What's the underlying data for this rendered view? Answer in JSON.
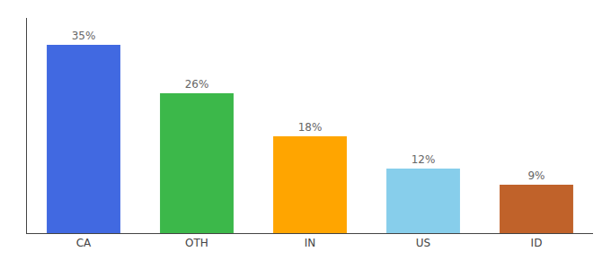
{
  "chart_data": {
    "type": "bar",
    "categories": [
      "CA",
      "OTH",
      "IN",
      "US",
      "ID"
    ],
    "values": [
      35,
      26,
      18,
      12,
      9
    ],
    "value_labels": [
      "35%",
      "26%",
      "18%",
      "12%",
      "9%"
    ],
    "colors": [
      "#4169E1",
      "#3CB84A",
      "#FFA500",
      "#87CEEB",
      "#C0622A"
    ],
    "ylim": [
      0,
      40
    ],
    "data_labels": true,
    "tick_labels": "x",
    "grid": false
  }
}
